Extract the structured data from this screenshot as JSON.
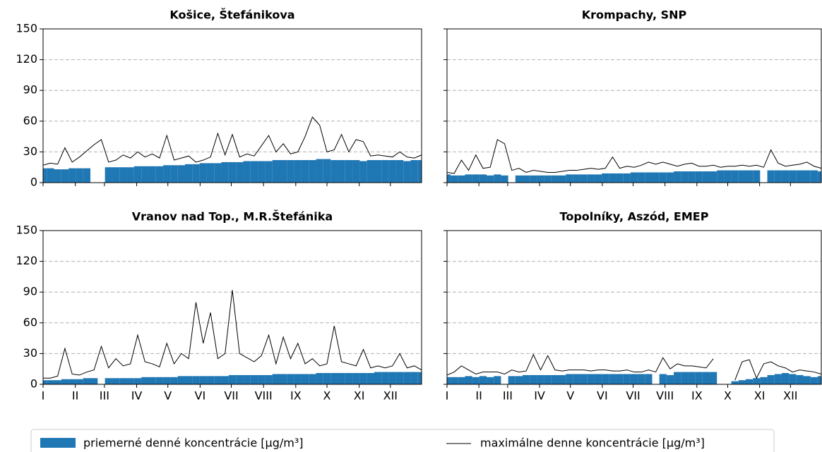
{
  "chart_data": [
    {
      "type": "line",
      "title": "Košice, Štefánikova",
      "x": [
        1,
        8,
        15,
        22,
        29,
        36,
        43,
        50,
        57,
        64,
        71,
        78,
        85,
        92,
        99,
        106,
        113,
        120,
        127,
        134,
        141,
        148,
        155,
        162,
        169,
        176,
        183,
        190,
        197,
        204,
        211,
        218,
        225,
        232,
        239,
        246,
        253,
        260,
        267,
        274,
        281,
        288,
        295,
        302,
        309,
        316,
        323,
        330,
        337,
        344,
        351,
        358,
        365
      ],
      "series": [
        {
          "name": "priemerné denné koncentrácie [µg/m³]",
          "type": "area",
          "color": "#1f77b4",
          "values": [
            14,
            14,
            13,
            13,
            14,
            14,
            14,
            null,
            null,
            15,
            15,
            15,
            15,
            16,
            16,
            16,
            16,
            17,
            17,
            17,
            18,
            18,
            19,
            19,
            19,
            20,
            20,
            20,
            21,
            21,
            21,
            21,
            22,
            22,
            22,
            22,
            22,
            22,
            23,
            23,
            22,
            22,
            22,
            22,
            21,
            22,
            22,
            22,
            22,
            22,
            21,
            22,
            22
          ]
        },
        {
          "name": "maximálne denne koncentrácie [µg/m³]",
          "type": "line",
          "color": "#000000",
          "values": [
            17,
            19,
            18,
            34,
            20,
            25,
            31,
            37,
            42,
            20,
            22,
            27,
            24,
            30,
            25,
            28,
            24,
            46,
            22,
            24,
            26,
            20,
            22,
            25,
            48,
            27,
            47,
            25,
            28,
            26,
            36,
            46,
            30,
            38,
            28,
            30,
            45,
            64,
            56,
            30,
            32,
            47,
            30,
            42,
            40,
            26,
            27,
            26,
            25,
            30,
            25,
            24,
            27
          ]
        }
      ],
      "xlim": [
        1,
        365
      ],
      "xticks": [
        1,
        32,
        60,
        91,
        121,
        152,
        182,
        213,
        244,
        274,
        305,
        335
      ],
      "ylim": [
        0,
        150
      ],
      "yticks": [
        0,
        30,
        60,
        90,
        120,
        150
      ],
      "grid": true
    },
    {
      "type": "line",
      "title": "Krompachy, SNP",
      "x": [
        1,
        8,
        15,
        22,
        29,
        36,
        43,
        50,
        57,
        64,
        71,
        78,
        85,
        92,
        99,
        106,
        113,
        120,
        127,
        134,
        141,
        148,
        155,
        162,
        169,
        176,
        183,
        190,
        197,
        204,
        211,
        218,
        225,
        232,
        239,
        246,
        253,
        260,
        267,
        274,
        281,
        288,
        295,
        302,
        309,
        316,
        323,
        330,
        337,
        344,
        351,
        358,
        365
      ],
      "series": [
        {
          "type": "area",
          "color": "#1f77b4",
          "values": [
            8,
            7,
            7,
            8,
            8,
            8,
            7,
            8,
            7,
            null,
            7,
            7,
            7,
            7,
            7,
            7,
            7,
            8,
            8,
            8,
            8,
            8,
            9,
            9,
            9,
            9,
            10,
            10,
            10,
            10,
            10,
            10,
            11,
            11,
            11,
            11,
            11,
            11,
            12,
            12,
            12,
            12,
            12,
            12,
            null,
            12,
            12,
            12,
            12,
            12,
            12,
            12,
            11
          ]
        },
        {
          "type": "line",
          "color": "#000000",
          "values": [
            10,
            9,
            22,
            12,
            27,
            14,
            15,
            42,
            38,
            12,
            14,
            10,
            12,
            11,
            10,
            10,
            11,
            12,
            12,
            13,
            14,
            13,
            14,
            25,
            14,
            16,
            15,
            17,
            20,
            18,
            20,
            18,
            16,
            18,
            19,
            16,
            16,
            17,
            15,
            16,
            16,
            17,
            16,
            17,
            15,
            32,
            19,
            16,
            17,
            18,
            20,
            16,
            14
          ]
        }
      ],
      "xlim": [
        1,
        365
      ],
      "xticks": [
        1,
        32,
        60,
        91,
        121,
        152,
        182,
        213,
        244,
        274,
        305,
        335
      ],
      "ylim": [
        0,
        150
      ],
      "yticks": [
        0,
        30,
        60,
        90,
        120,
        150
      ],
      "grid": true
    },
    {
      "type": "line",
      "title": "Vranov nad Top., M.R.Štefánika",
      "x": [
        1,
        8,
        15,
        22,
        29,
        36,
        43,
        50,
        57,
        64,
        71,
        78,
        85,
        92,
        99,
        106,
        113,
        120,
        127,
        134,
        141,
        148,
        155,
        162,
        169,
        176,
        183,
        190,
        197,
        204,
        211,
        218,
        225,
        232,
        239,
        246,
        253,
        260,
        267,
        274,
        281,
        288,
        295,
        302,
        309,
        316,
        323,
        330,
        337,
        344,
        351,
        358,
        365
      ],
      "series": [
        {
          "type": "area",
          "color": "#1f77b4",
          "values": [
            4,
            4,
            4,
            5,
            5,
            5,
            6,
            6,
            null,
            6,
            6,
            6,
            6,
            6,
            7,
            7,
            7,
            7,
            7,
            8,
            8,
            8,
            8,
            8,
            8,
            8,
            9,
            9,
            9,
            9,
            9,
            9,
            10,
            10,
            10,
            10,
            10,
            10,
            11,
            11,
            11,
            11,
            11,
            11,
            11,
            11,
            12,
            12,
            12,
            12,
            12,
            12,
            12
          ]
        },
        {
          "type": "line",
          "color": "#000000",
          "values": [
            6,
            6,
            8,
            35,
            10,
            9,
            12,
            14,
            37,
            16,
            25,
            18,
            20,
            48,
            22,
            20,
            17,
            40,
            20,
            30,
            25,
            80,
            40,
            70,
            25,
            30,
            92,
            30,
            26,
            22,
            28,
            48,
            20,
            46,
            25,
            40,
            20,
            25,
            18,
            20,
            57,
            22,
            20,
            18,
            34,
            16,
            18,
            16,
            18,
            30,
            16,
            18,
            14
          ]
        }
      ],
      "xlim": [
        1,
        365
      ],
      "xticks": [
        {
          "value": 1,
          "label": "I"
        },
        {
          "value": 32,
          "label": "II"
        },
        {
          "value": 60,
          "label": "III"
        },
        {
          "value": 91,
          "label": "IV"
        },
        {
          "value": 121,
          "label": "V"
        },
        {
          "value": 152,
          "label": "VI"
        },
        {
          "value": 182,
          "label": "VII"
        },
        {
          "value": 213,
          "label": "VIII"
        },
        {
          "value": 244,
          "label": "IX"
        },
        {
          "value": 274,
          "label": "X"
        },
        {
          "value": 305,
          "label": "XI"
        },
        {
          "value": 335,
          "label": "XII"
        }
      ],
      "ylim": [
        0,
        150
      ],
      "yticks": [
        0,
        30,
        60,
        90,
        120,
        150
      ],
      "grid": true
    },
    {
      "type": "line",
      "title": "Topolníky, Aszód, EMEP",
      "x": [
        1,
        8,
        15,
        22,
        29,
        36,
        43,
        50,
        57,
        64,
        71,
        78,
        85,
        92,
        99,
        106,
        113,
        120,
        127,
        134,
        141,
        148,
        155,
        162,
        169,
        176,
        183,
        190,
        197,
        204,
        211,
        218,
        225,
        232,
        239,
        246,
        253,
        260,
        267,
        274,
        281,
        288,
        295,
        302,
        309,
        316,
        323,
        330,
        337,
        344,
        351,
        358,
        365
      ],
      "series": [
        {
          "type": "area",
          "color": "#1f77b4",
          "values": [
            7,
            7,
            7,
            8,
            7,
            8,
            7,
            8,
            null,
            8,
            8,
            9,
            9,
            9,
            9,
            9,
            9,
            10,
            10,
            10,
            10,
            10,
            10,
            10,
            10,
            10,
            10,
            10,
            10,
            null,
            10,
            9,
            12,
            12,
            12,
            12,
            12,
            12,
            null,
            null,
            3,
            4,
            5,
            6,
            7,
            9,
            10,
            11,
            10,
            9,
            8,
            7,
            8
          ]
        },
        {
          "type": "line",
          "color": "#000000",
          "values": [
            9,
            12,
            18,
            14,
            10,
            12,
            12,
            12,
            10,
            14,
            12,
            13,
            29,
            14,
            28,
            14,
            13,
            14,
            14,
            14,
            13,
            14,
            14,
            13,
            13,
            14,
            12,
            12,
            14,
            12,
            26,
            15,
            20,
            18,
            18,
            17,
            16,
            25,
            null,
            null,
            4,
            22,
            24,
            6,
            20,
            22,
            18,
            16,
            12,
            14,
            13,
            12,
            10
          ]
        }
      ],
      "xlim": [
        1,
        365
      ],
      "xticks": [
        {
          "value": 1,
          "label": "I"
        },
        {
          "value": 32,
          "label": "II"
        },
        {
          "value": 60,
          "label": "III"
        },
        {
          "value": 91,
          "label": "IV"
        },
        {
          "value": 121,
          "label": "V"
        },
        {
          "value": 152,
          "label": "VI"
        },
        {
          "value": 182,
          "label": "VII"
        },
        {
          "value": 213,
          "label": "VIII"
        },
        {
          "value": 244,
          "label": "IX"
        },
        {
          "value": 274,
          "label": "X"
        },
        {
          "value": 305,
          "label": "XI"
        },
        {
          "value": 335,
          "label": "XII"
        }
      ],
      "ylim": [
        0,
        150
      ],
      "yticks": [
        0,
        30,
        60,
        90,
        120,
        150
      ],
      "grid": true
    }
  ]
}
